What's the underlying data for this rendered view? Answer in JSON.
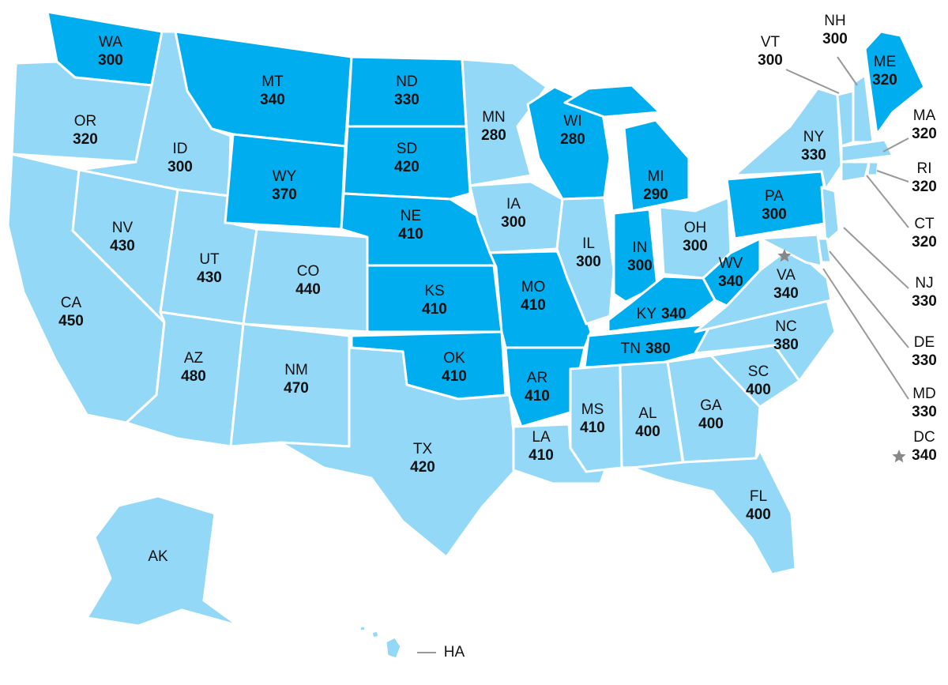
{
  "states": [
    {
      "abbr": "WA",
      "value": 300,
      "color": "#00aeef"
    },
    {
      "abbr": "OR",
      "value": 320,
      "color": "#93d9f7"
    },
    {
      "abbr": "CA",
      "value": 450,
      "color": "#93d9f7"
    },
    {
      "abbr": "ID",
      "value": 300,
      "color": "#93d9f7"
    },
    {
      "abbr": "NV",
      "value": 430,
      "color": "#93d9f7"
    },
    {
      "abbr": "UT",
      "value": 430,
      "color": "#93d9f7"
    },
    {
      "abbr": "AZ",
      "value": 480,
      "color": "#93d9f7"
    },
    {
      "abbr": "MT",
      "value": 340,
      "color": "#00aeef"
    },
    {
      "abbr": "WY",
      "value": 370,
      "color": "#00aeef"
    },
    {
      "abbr": "CO",
      "value": 440,
      "color": "#93d9f7"
    },
    {
      "abbr": "NM",
      "value": 470,
      "color": "#93d9f7"
    },
    {
      "abbr": "ND",
      "value": 330,
      "color": "#00aeef"
    },
    {
      "abbr": "SD",
      "value": 420,
      "color": "#00aeef"
    },
    {
      "abbr": "NE",
      "value": 410,
      "color": "#00aeef"
    },
    {
      "abbr": "KS",
      "value": 410,
      "color": "#00aeef"
    },
    {
      "abbr": "OK",
      "value": 410,
      "color": "#00aeef"
    },
    {
      "abbr": "TX",
      "value": 420,
      "color": "#93d9f7"
    },
    {
      "abbr": "MN",
      "value": 280,
      "color": "#93d9f7"
    },
    {
      "abbr": "IA",
      "value": 300,
      "color": "#93d9f7"
    },
    {
      "abbr": "MO",
      "value": 410,
      "color": "#00aeef"
    },
    {
      "abbr": "AR",
      "value": 410,
      "color": "#00aeef"
    },
    {
      "abbr": "LA",
      "value": 410,
      "color": "#93d9f7"
    },
    {
      "abbr": "WI",
      "value": 280,
      "color": "#00aeef"
    },
    {
      "abbr": "IL",
      "value": 300,
      "color": "#93d9f7"
    },
    {
      "abbr": "MI",
      "value": 290,
      "color": "#00aeef"
    },
    {
      "abbr": "IN",
      "value": 300,
      "color": "#00aeef"
    },
    {
      "abbr": "OH",
      "value": 300,
      "color": "#93d9f7"
    },
    {
      "abbr": "KY",
      "value": 340,
      "color": "#00aeef"
    },
    {
      "abbr": "TN",
      "value": 380,
      "color": "#00aeef"
    },
    {
      "abbr": "MS",
      "value": 410,
      "color": "#93d9f7"
    },
    {
      "abbr": "AL",
      "value": 400,
      "color": "#93d9f7"
    },
    {
      "abbr": "GA",
      "value": 400,
      "color": "#93d9f7"
    },
    {
      "abbr": "FL",
      "value": 400,
      "color": "#93d9f7"
    },
    {
      "abbr": "SC",
      "value": 400,
      "color": "#93d9f7"
    },
    {
      "abbr": "NC",
      "value": 380,
      "color": "#93d9f7"
    },
    {
      "abbr": "VA",
      "value": 340,
      "color": "#93d9f7"
    },
    {
      "abbr": "WV",
      "value": 340,
      "color": "#00aeef"
    },
    {
      "abbr": "PA",
      "value": 300,
      "color": "#00aeef"
    },
    {
      "abbr": "NY",
      "value": 330,
      "color": "#93d9f7"
    },
    {
      "abbr": "NJ",
      "value": 330,
      "color": "#93d9f7"
    },
    {
      "abbr": "DE",
      "value": 330,
      "color": "#93d9f7"
    },
    {
      "abbr": "MD",
      "value": 330,
      "color": "#93d9f7"
    },
    {
      "abbr": "VT",
      "value": 300,
      "color": "#93d9f7"
    },
    {
      "abbr": "NH",
      "value": 300,
      "color": "#93d9f7"
    },
    {
      "abbr": "ME",
      "value": 320,
      "color": "#00aeef"
    },
    {
      "abbr": "MA",
      "value": 320,
      "color": "#93d9f7"
    },
    {
      "abbr": "CT",
      "value": 320,
      "color": "#93d9f7"
    },
    {
      "abbr": "RI",
      "value": 320,
      "color": "#93d9f7"
    },
    {
      "abbr": "DC",
      "value": 340,
      "color": "#888888"
    },
    {
      "abbr": "AK",
      "color": "#93d9f7"
    },
    {
      "abbr": "HA",
      "color": "#93d9f7"
    }
  ]
}
